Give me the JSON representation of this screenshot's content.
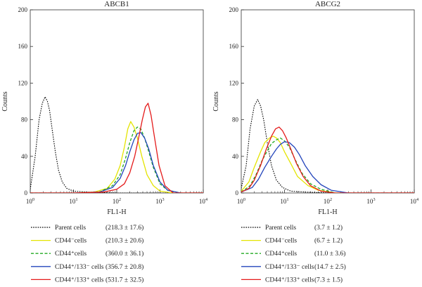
{
  "chart_data": [
    {
      "type": "line",
      "title": "ABCB1",
      "xlabel": "FL1-H",
      "ylabel": "Counts",
      "xscale": "log",
      "xlim": [
        1,
        10000
      ],
      "ylim": [
        0,
        200
      ],
      "x_ticks": [
        {
          "value": 1,
          "base": "10",
          "exp": "0"
        },
        {
          "value": 10,
          "base": "10",
          "exp": "1"
        },
        {
          "value": 100,
          "base": "10",
          "exp": "2"
        },
        {
          "value": 1000,
          "base": "10",
          "exp": "3"
        },
        {
          "value": 10000,
          "base": "10",
          "exp": "4"
        }
      ],
      "y_ticks": [
        0,
        40,
        80,
        120,
        160,
        200
      ],
      "series": [
        {
          "name": "Parent cells",
          "stat": "(218.3 ± 17.6)",
          "color": "#000000",
          "dash": "dotted",
          "x": [
            1,
            1.3,
            1.6,
            1.9,
            2.2,
            2.5,
            2.8,
            3.2,
            3.8,
            4.5,
            5.5,
            7,
            10,
            20,
            100,
            10000
          ],
          "y": [
            4,
            40,
            80,
            98,
            105,
            100,
            90,
            70,
            45,
            25,
            12,
            5,
            2,
            1,
            0,
            0
          ]
        },
        {
          "name": "CD44⁻cells",
          "sup": "−",
          "stat": "(210.3 ± 20.6)",
          "color": "#e4e400",
          "dash": "solid",
          "x": [
            1,
            10,
            30,
            60,
            90,
            120,
            150,
            180,
            210,
            250,
            300,
            380,
            500,
            700,
            1000,
            2000,
            10000
          ],
          "y": [
            0,
            0,
            1,
            5,
            15,
            30,
            50,
            70,
            78,
            72,
            60,
            40,
            20,
            8,
            2,
            0,
            0
          ]
        },
        {
          "name": "CD44⁺cells",
          "sup": "+",
          "stat": "(360.0 ± 36.1)",
          "color": "#22aa22",
          "dash": "dashed",
          "x": [
            1,
            10,
            40,
            80,
            120,
            160,
            200,
            250,
            300,
            360,
            440,
            550,
            700,
            1000,
            1500,
            3000,
            10000
          ],
          "y": [
            0,
            0,
            1,
            8,
            20,
            38,
            55,
            68,
            72,
            70,
            60,
            45,
            28,
            10,
            3,
            0,
            0
          ]
        },
        {
          "name": "CD44⁺/133⁻ cells",
          "stat": "(356.7 ± 20.8)",
          "color": "#2244bb",
          "dash": "solid",
          "x": [
            1,
            10,
            40,
            80,
            120,
            160,
            200,
            250,
            300,
            360,
            440,
            550,
            700,
            1000,
            1500,
            3000,
            10000
          ],
          "y": [
            0,
            0,
            1,
            6,
            16,
            30,
            45,
            58,
            65,
            66,
            60,
            48,
            30,
            12,
            3,
            0,
            0
          ]
        },
        {
          "name": "CD44⁺/133⁺ cells",
          "stat": "(531.7 ± 32.5)",
          "color": "#e41a1a",
          "dash": "solid",
          "x": [
            1,
            10,
            50,
            100,
            150,
            200,
            260,
            320,
            390,
            460,
            530,
            620,
            750,
            950,
            1300,
            2000,
            10000
          ],
          "y": [
            0,
            0,
            1,
            4,
            10,
            22,
            40,
            60,
            80,
            94,
            98,
            85,
            60,
            30,
            8,
            0,
            0
          ]
        }
      ]
    },
    {
      "type": "line",
      "title": "ABCG2",
      "xlabel": "FL1-H",
      "ylabel": "Counts",
      "xscale": "log",
      "xlim": [
        1,
        10000
      ],
      "ylim": [
        0,
        200
      ],
      "x_ticks": [
        {
          "value": 1,
          "base": "10",
          "exp": "0"
        },
        {
          "value": 10,
          "base": "10",
          "exp": "1"
        },
        {
          "value": 100,
          "base": "10",
          "exp": "2"
        },
        {
          "value": 1000,
          "base": "10",
          "exp": "3"
        },
        {
          "value": 10000,
          "base": "10",
          "exp": "4"
        }
      ],
      "y_ticks": [
        0,
        40,
        80,
        120,
        160,
        200
      ],
      "series": [
        {
          "name": "Parent cells",
          "stat": "(3.7 ± 1.2)",
          "color": "#000000",
          "dash": "dotted",
          "x": [
            1,
            1.3,
            1.6,
            2.0,
            2.4,
            2.8,
            3.3,
            4.0,
            5.0,
            6.5,
            9,
            14,
            30,
            100,
            10000
          ],
          "y": [
            5,
            30,
            70,
            95,
            102,
            95,
            80,
            55,
            30,
            14,
            6,
            2,
            1,
            0,
            0
          ]
        },
        {
          "name": "CD44⁻cells",
          "stat": "(6.7 ± 1.2)",
          "color": "#e4e400",
          "dash": "solid",
          "x": [
            1,
            1.5,
            2.0,
            2.8,
            3.5,
            4.5,
            5.5,
            6.5,
            8,
            10,
            14,
            20,
            35,
            60,
            150,
            10000
          ],
          "y": [
            2,
            12,
            28,
            45,
            55,
            60,
            62,
            60,
            55,
            45,
            32,
            18,
            8,
            3,
            0,
            0
          ]
        },
        {
          "name": "CD44⁺cells",
          "stat": "(11.0 ± 3.6)",
          "color": "#22aa22",
          "dash": "dashed",
          "x": [
            1,
            1.6,
            2.2,
            3.0,
            4.0,
            5.0,
            6.5,
            8,
            10,
            13,
            17,
            25,
            40,
            70,
            150,
            10000
          ],
          "y": [
            1,
            8,
            20,
            35,
            46,
            54,
            58,
            60,
            57,
            50,
            38,
            22,
            10,
            4,
            0,
            0
          ]
        },
        {
          "name": "CD44⁺/133⁻ cells",
          "stat": "(14.7 ± 2.5)",
          "color": "#2244bb",
          "dash": "solid",
          "x": [
            1,
            1.8,
            2.5,
            3.5,
            5,
            6.5,
            8,
            10,
            13,
            17,
            22,
            30,
            45,
            70,
            120,
            300,
            10000
          ],
          "y": [
            1,
            6,
            15,
            28,
            40,
            48,
            53,
            56,
            55,
            50,
            42,
            30,
            18,
            9,
            3,
            0,
            0
          ]
        },
        {
          "name": "CD44⁺/133⁺ cells",
          "stat": "(7.3 ± 1.5)",
          "color": "#e41a1a",
          "dash": "solid",
          "x": [
            1,
            1.5,
            2.0,
            2.8,
            3.8,
            5,
            6.2,
            7.5,
            9,
            11,
            14,
            19,
            27,
            40,
            70,
            150,
            10000
          ],
          "y": [
            1,
            5,
            14,
            30,
            48,
            62,
            70,
            72,
            68,
            60,
            48,
            32,
            18,
            8,
            2,
            0,
            0
          ]
        }
      ]
    }
  ]
}
